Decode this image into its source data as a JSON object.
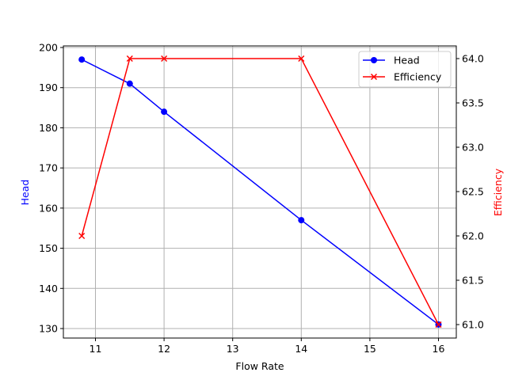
{
  "chart_data": {
    "type": "line",
    "title": "",
    "xlabel": "Flow Rate",
    "ylabel_left": "Head",
    "ylabel_right": "Efficiency",
    "x": [
      10.8,
      11.5,
      12,
      14,
      16
    ],
    "xlim": [
      10.54,
      16.26
    ],
    "x_ticks": [
      11,
      12,
      13,
      14,
      15,
      16
    ],
    "ylim_left": [
      127.7,
      200.3
    ],
    "y_ticks_left": [
      130,
      140,
      150,
      160,
      170,
      180,
      190,
      200
    ],
    "ylim_right": [
      60.9,
      64.15
    ],
    "y_ticks_right": [
      "61.0",
      "61.5",
      "62.0",
      "62.5",
      "63.0",
      "63.5",
      "64.0"
    ],
    "grid": true,
    "legend_position": "upper right",
    "series": [
      {
        "name": "Head",
        "axis": "left",
        "color": "#0000ff",
        "marker": "circle",
        "values": [
          197,
          191,
          184,
          157,
          131
        ]
      },
      {
        "name": "Efficiency",
        "axis": "right",
        "color": "#ff0000",
        "marker": "x",
        "values": [
          62,
          64,
          64,
          64,
          61
        ]
      }
    ]
  },
  "legend": {
    "items": [
      {
        "label": "Head",
        "color": "#0000ff"
      },
      {
        "label": "Efficiency",
        "color": "#ff0000"
      }
    ]
  },
  "colors": {
    "head": "#0000ff",
    "efficiency": "#ff0000",
    "grid": "#b0b0b0",
    "axis": "#000000"
  }
}
